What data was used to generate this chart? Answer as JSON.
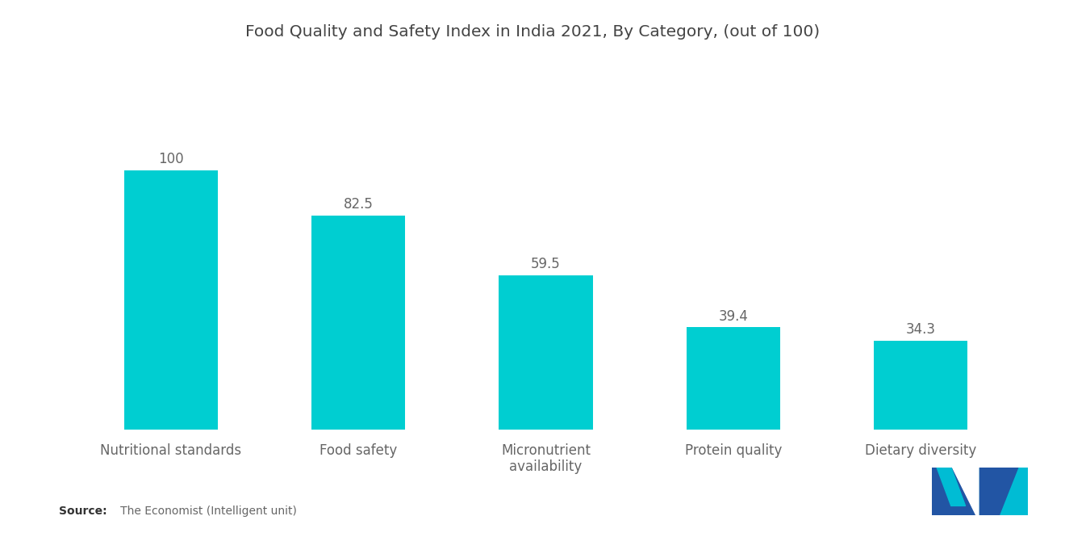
{
  "title": "Food Quality and Safety Index in India 2021, By Category, (out of 100)",
  "categories": [
    "Nutritional standards",
    "Food safety",
    "Micronutrient\navailability",
    "Protein quality",
    "Dietary diversity"
  ],
  "values": [
    100,
    82.5,
    59.5,
    39.4,
    34.3
  ],
  "bar_color": "#00CED1",
  "background_color": "#ffffff",
  "title_fontsize": 14.5,
  "label_fontsize": 12,
  "value_fontsize": 12,
  "source_bold": "Source:",
  "source_rest": "   The Economist (Intelligent unit)",
  "ylim": [
    0,
    120
  ],
  "bar_width": 0.5,
  "logo_color_left": "#2255A4",
  "logo_color_right": "#00BCD4"
}
